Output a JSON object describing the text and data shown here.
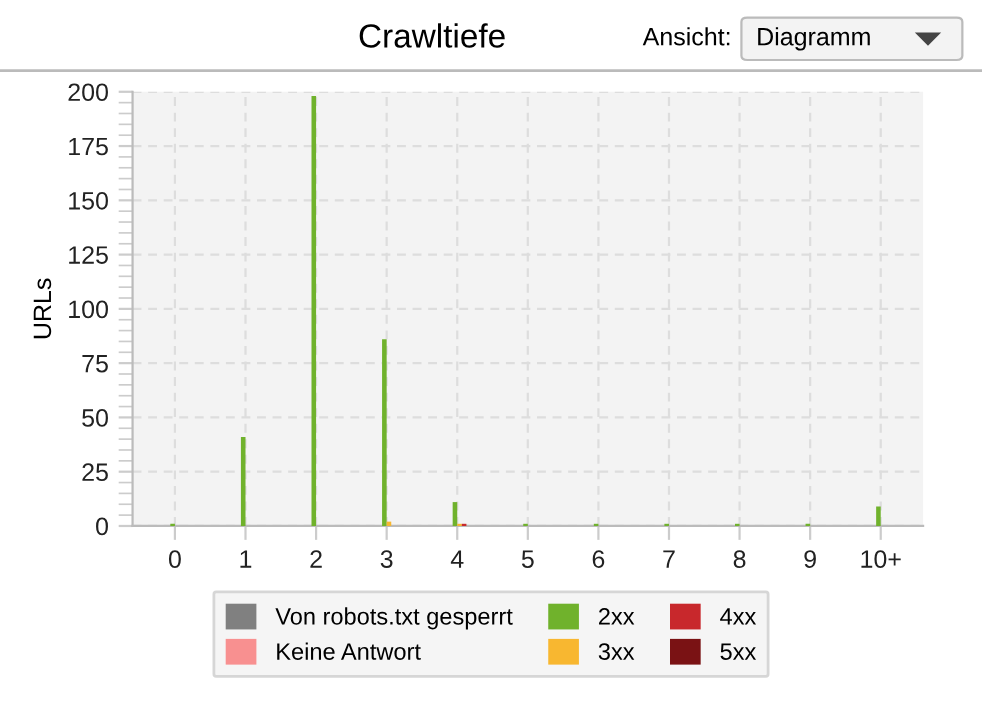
{
  "chart_data": {
    "type": "bar",
    "title": "Crawltiefe",
    "ylabel": "URLs",
    "annotations": [
      "Ansicht:",
      "Diagramm"
    ],
    "categories": [
      "0",
      "1",
      "2",
      "3",
      "4",
      "5",
      "6",
      "7",
      "8",
      "9",
      "10+"
    ],
    "series": [
      {
        "name": "Von robots.txt gesperrt",
        "color": "#808080",
        "values": [
          0,
          0,
          0,
          0,
          0,
          0,
          0,
          0,
          0,
          0,
          0
        ]
      },
      {
        "name": "Keine Antwort",
        "color": "#f89090",
        "values": [
          0,
          0,
          0,
          0,
          0,
          0,
          0,
          0,
          0,
          0,
          0
        ]
      },
      {
        "name": "2xx",
        "color": "#70b22c",
        "values": [
          1,
          41,
          198,
          86,
          11,
          1,
          1,
          1,
          1,
          1,
          9
        ]
      },
      {
        "name": "3xx",
        "color": "#f8b730",
        "values": [
          0,
          0,
          0,
          2,
          1,
          0,
          0,
          0,
          0,
          0,
          0
        ]
      },
      {
        "name": "4xx",
        "color": "#c8282c",
        "values": [
          0,
          0,
          0,
          0,
          1,
          0,
          0,
          0,
          0,
          0,
          0
        ]
      },
      {
        "name": "5xx",
        "color": "#7a1214",
        "values": [
          0,
          0,
          0,
          0,
          0,
          0,
          0,
          0,
          0,
          0,
          0
        ]
      }
    ],
    "ylim": [
      0,
      200
    ],
    "yticks": [
      0,
      25,
      50,
      75,
      100,
      125,
      150,
      175,
      200
    ],
    "grid": true,
    "legend": "bottom"
  }
}
